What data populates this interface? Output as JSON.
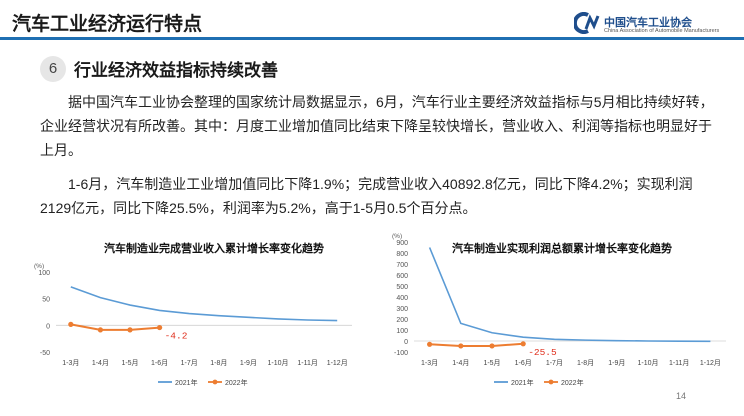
{
  "header": {
    "title": "汽车工业经济运行特点"
  },
  "logo": {
    "name_cn": "中国汽车工业协会",
    "name_en": "China Association of Automobile Manufacturers"
  },
  "section": {
    "number": "6",
    "title": "行业经济效益指标持续改善",
    "paragraph1": "据中国汽车工业协会整理的国家统计局数据显示，6月，汽车行业主要经济效益指标与5月相比持续好转，企业经营状况有所改善。其中：月度工业增加值同比结束下降呈较快增长，营业收入、利润等指标也明显好于上月。",
    "paragraph2": "1-6月，汽车制造业工业增加值同比下降1.9%；完成营业收入40892.8亿元，同比下降4.2%；实现利润2129亿元，同比下降25.5%，利润率为5.2%，高于1-5月0.5个百分点。"
  },
  "chart_data": [
    {
      "type": "line",
      "title": "汽车制造业完成营业收入累计增长率变化趋势",
      "ylabel": "(%)",
      "ylim": [
        -50,
        100
      ],
      "yticks": [
        -50,
        0,
        50,
        100
      ],
      "categories": [
        "1-3月",
        "1-4月",
        "1-5月",
        "1-6月",
        "1-7月",
        "1-8月",
        "1-9月",
        "1-10月",
        "1-11月",
        "1-12月"
      ],
      "series": [
        {
          "name": "2021年",
          "color": "#5b9bd5",
          "marker": false,
          "values": [
            72,
            52,
            38,
            28,
            22,
            18,
            15,
            12,
            10,
            9
          ]
        },
        {
          "name": "2022年",
          "color": "#ed7d31",
          "marker": true,
          "values": [
            1.8,
            -8.5,
            -8.5,
            -4.2,
            null,
            null,
            null,
            null,
            null,
            null
          ]
        }
      ],
      "annotation": {
        "text": "-4.2",
        "color": "#e0301e"
      },
      "grid": false,
      "legend": "bottom"
    },
    {
      "type": "line",
      "title": "汽车制造业实现利润总额累计增长率变化趋势",
      "ylabel": "(%)",
      "ylim": [
        -100,
        900
      ],
      "yticks": [
        -100,
        0,
        100,
        200,
        300,
        400,
        500,
        600,
        700,
        800,
        900
      ],
      "categories": [
        "1-3月",
        "1-4月",
        "1-5月",
        "1-6月",
        "1-7月",
        "1-8月",
        "1-9月",
        "1-10月",
        "1-11月",
        "1-12月"
      ],
      "series": [
        {
          "name": "2021年",
          "color": "#5b9bd5",
          "marker": false,
          "values": [
            850,
            160,
            75,
            35,
            15,
            8,
            3,
            0,
            -2,
            -3
          ]
        },
        {
          "name": "2022年",
          "color": "#ed7d31",
          "marker": true,
          "values": [
            -30,
            -45,
            -45,
            -25.5,
            null,
            null,
            null,
            null,
            null,
            null
          ]
        }
      ],
      "annotation": {
        "text": "-25.5",
        "color": "#e0301e"
      },
      "grid": false,
      "legend": "bottom"
    }
  ],
  "page": {
    "number": "14"
  }
}
